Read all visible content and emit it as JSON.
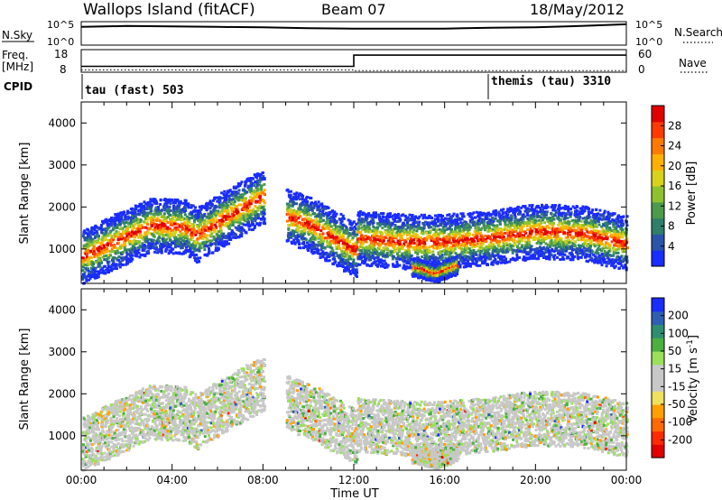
{
  "header": {
    "station": "Wallops Island (fitACF)",
    "beam": "Beam 07",
    "date": "18/May/2012"
  },
  "sky_strip": {
    "left_label": "N.Sky",
    "left_ticks": [
      "10^5",
      "10^0"
    ],
    "right_label": "N.Search",
    "right_ticks": [
      "10^5",
      "10^0"
    ]
  },
  "freq_strip": {
    "left_label_top": "Freq.",
    "left_label_unit": "[MHz]",
    "left_ticks": [
      "18",
      "8"
    ],
    "right_label": "Nave",
    "right_ticks": [
      "60",
      "0"
    ]
  },
  "cpid_strip": {
    "label": "CPID",
    "modes": [
      {
        "name": "tau (fast)",
        "id": "503",
        "start_hour": 0
      },
      {
        "name": "themis (tau)",
        "id": "3310",
        "start_hour": 18
      }
    ]
  },
  "axes": {
    "xlabel": "Time UT",
    "xticks": [
      "00:00",
      "04:00",
      "08:00",
      "12:00",
      "16:00",
      "20:00",
      "00:00"
    ],
    "xlim_hours": [
      0,
      24
    ],
    "ylabel": "Slant Range [km]",
    "yticks": [
      "1000",
      "2000",
      "3000",
      "4000"
    ],
    "ylim_km": [
      180,
      4500
    ]
  },
  "power_colorbar": {
    "label": "Power [dB]",
    "ticks": [
      "4",
      "8",
      "12",
      "16",
      "20",
      "24",
      "28"
    ],
    "colors": [
      "#1a2cff",
      "#2b53a8",
      "#2f7f6a",
      "#4c9a4c",
      "#8fc12f",
      "#d8d21a",
      "#ffb000",
      "#ff7a00",
      "#ff3a00",
      "#e00000"
    ]
  },
  "velocity_colorbar": {
    "label": "Velocity [m s^-1]",
    "ticks": [
      "200",
      "100",
      "50",
      "15",
      "-15",
      "-50",
      "-100",
      "-200"
    ],
    "colors": [
      "#1a2cff",
      "#2f5fb0",
      "#2e8f70",
      "#4cb040",
      "#9be05a",
      "#c8c8c8",
      "#c8c8c8",
      "#f0e060",
      "#ffa000",
      "#ff6a00",
      "#ff2a00",
      "#e00000"
    ]
  },
  "chart_data": [
    {
      "type": "heatmap",
      "title": "Power",
      "x": "Time UT (hours)",
      "y": "Slant Range [km]",
      "xlim": [
        0,
        24
      ],
      "ylim": [
        180,
        4500
      ],
      "value_range_dB": [
        0,
        30
      ],
      "features": [
        {
          "t": [
            0,
            2,
            3,
            4.5,
            5,
            6.5,
            8
          ],
          "range_km": [
            850,
            1350,
            1600,
            1550,
            1350,
            1850,
            2300
          ],
          "peak_dB": 28
        },
        {
          "t": [
            9,
            10,
            11,
            12
          ],
          "range_km": [
            1800,
            1600,
            1300,
            1000
          ],
          "peak_dB": 24
        },
        {
          "t": [
            12,
            14,
            16,
            18,
            20,
            22,
            24
          ],
          "range_km": [
            1300,
            1200,
            1200,
            1300,
            1450,
            1400,
            1150
          ],
          "peak_dB": 24
        },
        {
          "t": [
            14.5,
            15.5,
            16.5
          ],
          "range_km": [
            600,
            450,
            650
          ],
          "peak_dB": 26
        }
      ]
    },
    {
      "type": "heatmap",
      "title": "Velocity",
      "x": "Time UT (hours)",
      "y": "Slant Range [km]",
      "xlim": [
        0,
        24
      ],
      "ylim": [
        180,
        4500
      ],
      "value_range_ms": [
        -200,
        200
      ],
      "dominant_value_band": "-15 to 15 (ground scatter, grey)"
    },
    {
      "type": "line",
      "title": "N.Sky / N.Search",
      "x": [
        0,
        2,
        4,
        6,
        8,
        10,
        12,
        14,
        16,
        18,
        20,
        22,
        24
      ],
      "series": [
        {
          "name": "N.Sky",
          "values_log10": [
            4.0,
            4.2,
            4.1,
            4.0,
            3.9,
            3.7,
            3.6,
            3.6,
            3.6,
            3.8,
            3.9,
            4.2,
            4.6
          ]
        }
      ]
    },
    {
      "type": "line",
      "title": "Freq. / Nave",
      "x": [
        0,
        12,
        12,
        24
      ],
      "series": [
        {
          "name": "Freq.",
          "values": [
            10.4,
            10.4,
            15.8,
            15.8
          ]
        },
        {
          "name": "Nave",
          "values": [
            4,
            4,
            2,
            2
          ]
        }
      ]
    }
  ]
}
